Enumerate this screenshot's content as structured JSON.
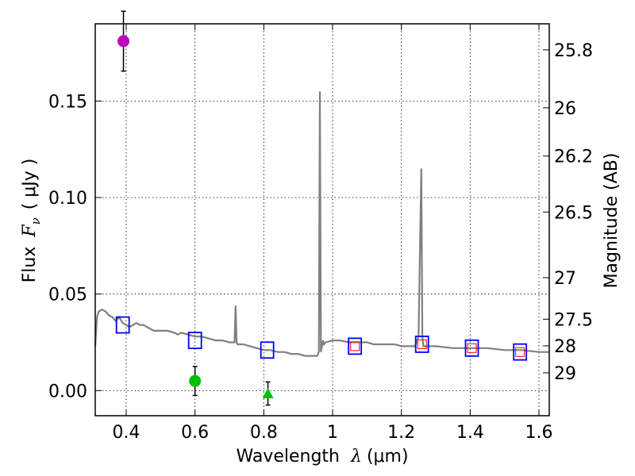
{
  "chart_data": {
    "type": "line",
    "title": "",
    "xlabel": "Wavelength",
    "xlabel_symbol": "λ",
    "xlabel_unit": "(μm)",
    "ylabel": "Flux",
    "ylabel_symbol": "F",
    "ylabel_sub": "ν",
    "ylabel_unit": "( μJy )",
    "y2label": "Magnitude (AB)",
    "xlim": [
      0.31,
      1.63
    ],
    "ylim": [
      -0.013,
      0.19
    ],
    "grid": true,
    "x_ticks": [
      0.4,
      0.6,
      0.8,
      1.0,
      1.2,
      1.4,
      1.6
    ],
    "x_tick_labels": [
      "0.4",
      "0.6",
      "0.8",
      "1",
      "1.2",
      "1.4",
      "1.6"
    ],
    "y_ticks": [
      0.0,
      0.05,
      0.1,
      0.15
    ],
    "y_tick_labels": [
      "0.00",
      "0.05",
      "0.10",
      "0.15"
    ],
    "y2_ticks": [
      {
        "label": "25.8",
        "flux": 0.1765
      },
      {
        "label": "26",
        "flux": 0.1465
      },
      {
        "label": "26.2",
        "flux": 0.1215
      },
      {
        "label": "26.5",
        "flux": 0.0925
      },
      {
        "label": "27",
        "flux": 0.0585
      },
      {
        "label": "27.5",
        "flux": 0.037
      },
      {
        "label": "28",
        "flux": 0.0232
      },
      {
        "label": "29",
        "flux": 0.0092
      }
    ],
    "series": [
      {
        "name": "SED model",
        "style": "line",
        "color": "#808080",
        "x": [
          0.31,
          0.315,
          0.32,
          0.33,
          0.34,
          0.35,
          0.36,
          0.37,
          0.38,
          0.39,
          0.4,
          0.41,
          0.42,
          0.43,
          0.44,
          0.45,
          0.46,
          0.47,
          0.48,
          0.5,
          0.52,
          0.54,
          0.55,
          0.56,
          0.58,
          0.6,
          0.62,
          0.64,
          0.66,
          0.68,
          0.7,
          0.715,
          0.718,
          0.721,
          0.724,
          0.727,
          0.74,
          0.76,
          0.78,
          0.8,
          0.82,
          0.84,
          0.86,
          0.88,
          0.9,
          0.92,
          0.94,
          0.955,
          0.96,
          0.963,
          0.966,
          0.969,
          0.972,
          0.975,
          0.98,
          1.0,
          1.02,
          1.05,
          1.08,
          1.1,
          1.12,
          1.15,
          1.18,
          1.2,
          1.22,
          1.24,
          1.25,
          1.258,
          1.261,
          1.264,
          1.27,
          1.28,
          1.3,
          1.35,
          1.4,
          1.45,
          1.5,
          1.55,
          1.6,
          1.63
        ],
        "y": [
          0.023,
          0.038,
          0.041,
          0.042,
          0.041,
          0.039,
          0.038,
          0.036,
          0.038,
          0.035,
          0.034,
          0.033,
          0.034,
          0.035,
          0.034,
          0.034,
          0.033,
          0.032,
          0.031,
          0.031,
          0.031,
          0.03,
          0.029,
          0.03,
          0.029,
          0.028,
          0.028,
          0.027,
          0.026,
          0.026,
          0.025,
          0.025,
          0.044,
          0.025,
          0.024,
          0.024,
          0.024,
          0.023,
          0.022,
          0.021,
          0.021,
          0.02,
          0.02,
          0.019,
          0.019,
          0.018,
          0.018,
          0.018,
          0.02,
          0.155,
          0.02,
          0.023,
          0.026,
          0.024,
          0.025,
          0.026,
          0.026,
          0.025,
          0.025,
          0.025,
          0.024,
          0.024,
          0.024,
          0.023,
          0.023,
          0.023,
          0.028,
          0.115,
          0.028,
          0.023,
          0.023,
          0.023,
          0.023,
          0.022,
          0.022,
          0.022,
          0.021,
          0.021,
          0.02,
          0.02
        ]
      },
      {
        "name": "model photometry",
        "style": "square",
        "color": "#0000ff",
        "x": [
          0.39,
          0.6,
          0.81,
          1.065,
          1.26,
          1.405,
          1.545
        ],
        "y": [
          0.034,
          0.026,
          0.021,
          0.023,
          0.024,
          0.022,
          0.02
        ]
      },
      {
        "name": "observed photometry",
        "style": "small-square",
        "color": "#ff0000",
        "x": [
          1.065,
          1.26,
          1.405,
          1.545
        ],
        "y": [
          0.023,
          0.024,
          0.022,
          0.02
        ]
      },
      {
        "name": "detection (magenta)",
        "style": "circle",
        "color": "#bf00bf",
        "x": [
          0.392
        ],
        "y": [
          0.181
        ],
        "err": [
          0.0155
        ]
      },
      {
        "name": "detection (green)",
        "style": "circle",
        "color": "#00c000",
        "x": [
          0.6
        ],
        "y": [
          0.005
        ],
        "err": [
          0.0075
        ]
      },
      {
        "name": "limit (green)",
        "style": "triangle",
        "color": "#00c000",
        "x": [
          0.812
        ],
        "y": [
          -0.0015
        ],
        "err": [
          0.006
        ]
      }
    ]
  }
}
